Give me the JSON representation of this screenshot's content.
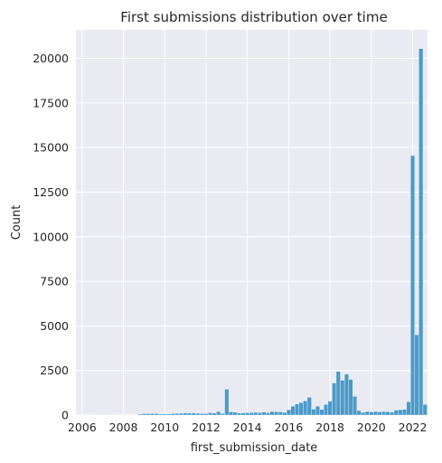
{
  "chart_data": {
    "type": "bar",
    "title": "First submissions distribution over time",
    "xlabel": "first_submission_date",
    "ylabel": "Count",
    "xlim": [
      2005.7,
      2022.72
    ],
    "ylim": [
      0,
      21600
    ],
    "xticks": [
      2006,
      2008,
      2010,
      2012,
      2014,
      2016,
      2018,
      2020,
      2022
    ],
    "yticks": [
      0,
      2500,
      5000,
      7500,
      10000,
      12500,
      15000,
      17500,
      20000
    ],
    "grid": true,
    "bin_start": 2006.5,
    "bin_width": 0.2,
    "values": [
      5,
      5,
      5,
      5,
      8,
      10,
      8,
      12,
      15,
      10,
      15,
      50,
      80,
      80,
      90,
      80,
      60,
      70,
      60,
      80,
      90,
      100,
      120,
      110,
      120,
      100,
      90,
      80,
      130,
      110,
      200,
      90,
      1450,
      180,
      160,
      110,
      120,
      130,
      140,
      150,
      140,
      170,
      130,
      200,
      190,
      180,
      150,
      300,
      500,
      620,
      700,
      800,
      1000,
      330,
      500,
      310,
      600,
      780,
      1800,
      2450,
      1950,
      2300,
      2000,
      1050,
      250,
      150,
      200,
      180,
      200,
      180,
      200,
      190,
      160,
      280,
      300,
      320,
      750,
      14550,
      4500,
      20550,
      600
    ],
    "bar_color": "#4c9ac9",
    "background_color": "#eaeaf2"
  }
}
